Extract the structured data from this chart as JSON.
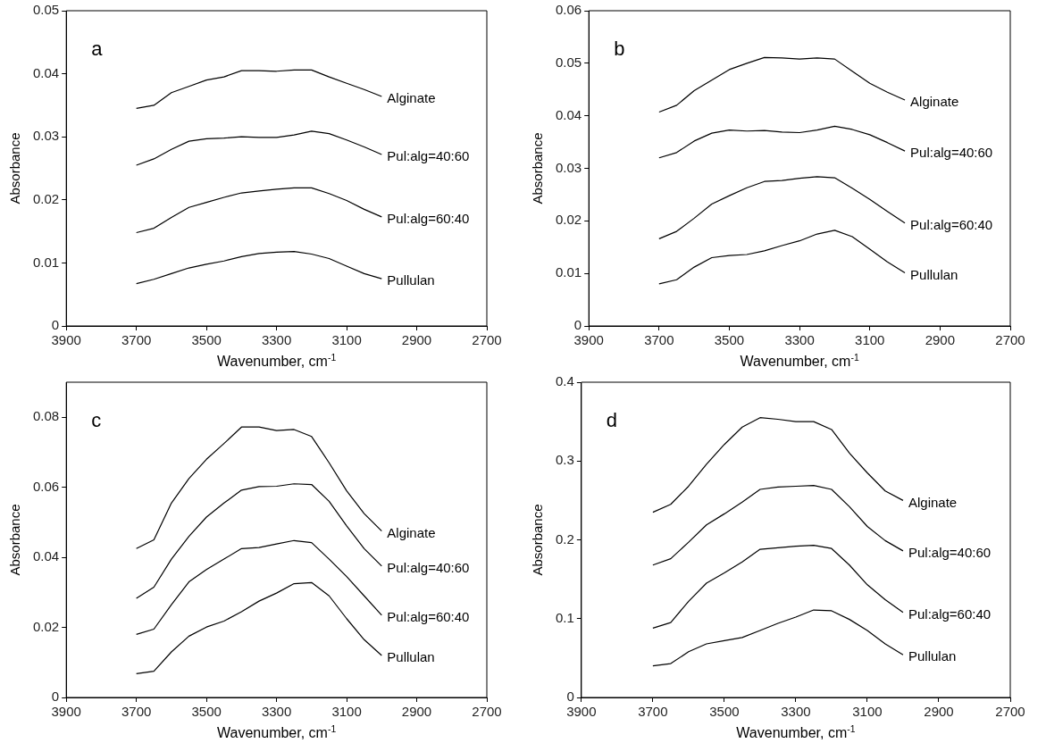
{
  "chart_data": [
    {
      "type": "line",
      "title": "a",
      "xlabel": "Wavenumber, cm$^{-1}$",
      "ylabel": "Absorbance",
      "x": [
        3700,
        3650,
        3600,
        3550,
        3500,
        3450,
        3400,
        3350,
        3300,
        3250,
        3200,
        3150,
        3100,
        3050,
        3000
      ],
      "xlim": [
        3900,
        2700
      ],
      "xticks": [
        3900,
        3700,
        3500,
        3300,
        3100,
        2900,
        2700
      ],
      "ylim": [
        0,
        0.05
      ],
      "yticks": [
        0,
        0.01,
        0.02,
        0.03,
        0.04,
        0.05
      ],
      "grid": false,
      "legend": false,
      "marker": "none",
      "line_style": "solid",
      "series": [
        {
          "name": "Alginate",
          "color": "#000000",
          "values": [
            0.0345,
            0.035,
            0.037,
            0.038,
            0.039,
            0.0395,
            0.0405,
            0.0405,
            0.0404,
            0.0406,
            0.0406,
            0.0395,
            0.0385,
            0.0375,
            0.0364
          ]
        },
        {
          "name": "Pul:alg=40:60",
          "color": "#000000",
          "values": [
            0.0255,
            0.0265,
            0.028,
            0.0293,
            0.0297,
            0.0298,
            0.03,
            0.0299,
            0.0299,
            0.0303,
            0.0309,
            0.0305,
            0.0295,
            0.0284,
            0.0272
          ]
        },
        {
          "name": "Pul:alg=60:40",
          "color": "#000000",
          "values": [
            0.0148,
            0.0155,
            0.0172,
            0.0188,
            0.0196,
            0.0204,
            0.0211,
            0.0214,
            0.0217,
            0.0219,
            0.0219,
            0.021,
            0.0199,
            0.0185,
            0.0173
          ]
        },
        {
          "name": "Pullulan",
          "color": "#000000",
          "values": [
            0.0067,
            0.0074,
            0.0083,
            0.0092,
            0.0098,
            0.0103,
            0.011,
            0.0115,
            0.0117,
            0.0118,
            0.0114,
            0.0107,
            0.0095,
            0.0083,
            0.0075
          ]
        }
      ]
    },
    {
      "type": "line",
      "title": "b",
      "xlabel": "Wavenumber, cm$^{-1}$",
      "ylabel": "Absorbance",
      "x": [
        3700,
        3650,
        3600,
        3550,
        3500,
        3450,
        3400,
        3350,
        3300,
        3250,
        3200,
        3150,
        3100,
        3050,
        3000
      ],
      "xlim": [
        3900,
        2700
      ],
      "xticks": [
        3900,
        3700,
        3500,
        3300,
        3100,
        2900,
        2700
      ],
      "ylim": [
        0,
        0.06
      ],
      "yticks": [
        0,
        0.01,
        0.02,
        0.03,
        0.04,
        0.05,
        0.06
      ],
      "grid": false,
      "legend": false,
      "marker": "none",
      "line_style": "solid",
      "series": [
        {
          "name": "Alginate",
          "color": "#000000",
          "values": [
            0.0407,
            0.042,
            0.0448,
            0.0468,
            0.0488,
            0.05,
            0.0511,
            0.051,
            0.0508,
            0.051,
            0.0508,
            0.0485,
            0.0462,
            0.0445,
            0.043
          ]
        },
        {
          "name": "Pul:alg=40:60",
          "color": "#000000",
          "values": [
            0.032,
            0.033,
            0.0352,
            0.0367,
            0.0373,
            0.0371,
            0.0372,
            0.0369,
            0.0368,
            0.0373,
            0.038,
            0.0374,
            0.0364,
            0.0349,
            0.0333
          ]
        },
        {
          "name": "Pul:alg=60:40",
          "color": "#000000",
          "values": [
            0.0166,
            0.018,
            0.0205,
            0.0232,
            0.0248,
            0.0263,
            0.0275,
            0.0277,
            0.0281,
            0.0284,
            0.0282,
            0.0262,
            0.0241,
            0.0218,
            0.0196
          ]
        },
        {
          "name": "Pullulan",
          "color": "#000000",
          "values": [
            0.008,
            0.0088,
            0.0112,
            0.013,
            0.0134,
            0.0136,
            0.0143,
            0.0153,
            0.0162,
            0.0175,
            0.0182,
            0.017,
            0.0146,
            0.0122,
            0.0101
          ]
        }
      ]
    },
    {
      "type": "line",
      "title": "c",
      "xlabel": "Wavenumber, cm$^{-1}$",
      "ylabel": "Absorbance",
      "x": [
        3700,
        3650,
        3600,
        3550,
        3500,
        3450,
        3400,
        3350,
        3300,
        3250,
        3200,
        3150,
        3100,
        3050,
        3000
      ],
      "xlim": [
        3900,
        2700
      ],
      "xticks": [
        3900,
        3700,
        3500,
        3300,
        3100,
        2900,
        2700
      ],
      "ylim": [
        0,
        0.09
      ],
      "yticks": [
        0,
        0.02,
        0.04,
        0.06,
        0.08
      ],
      "grid": false,
      "legend": false,
      "marker": "none",
      "line_style": "solid",
      "series": [
        {
          "name": "Alginate",
          "color": "#000000",
          "values": [
            0.0425,
            0.045,
            0.0555,
            0.0625,
            0.068,
            0.0725,
            0.0772,
            0.0772,
            0.0762,
            0.0765,
            0.0745,
            0.067,
            0.059,
            0.0525,
            0.0475
          ]
        },
        {
          "name": "Pul:alg=40:60",
          "color": "#000000",
          "values": [
            0.0283,
            0.0315,
            0.0395,
            0.046,
            0.0515,
            0.0555,
            0.0592,
            0.0602,
            0.0603,
            0.061,
            0.0608,
            0.056,
            0.049,
            0.0425,
            0.0375
          ]
        },
        {
          "name": "Pul:alg=60:40",
          "color": "#000000",
          "values": [
            0.018,
            0.0195,
            0.0265,
            0.033,
            0.0365,
            0.0395,
            0.0425,
            0.0428,
            0.0438,
            0.0448,
            0.0442,
            0.0395,
            0.0345,
            0.029,
            0.0235
          ]
        },
        {
          "name": "Pullulan",
          "color": "#000000",
          "values": [
            0.0068,
            0.0075,
            0.013,
            0.0175,
            0.0201,
            0.0218,
            0.0245,
            0.0275,
            0.0298,
            0.0325,
            0.0328,
            0.029,
            0.0225,
            0.0165,
            0.012
          ]
        }
      ]
    },
    {
      "type": "line",
      "title": "d",
      "xlabel": "Wavenumber, cm$^{-1}$",
      "ylabel": "Absorbance",
      "x": [
        3700,
        3650,
        3600,
        3550,
        3500,
        3450,
        3400,
        3350,
        3300,
        3250,
        3200,
        3150,
        3100,
        3050,
        3000
      ],
      "xlim": [
        3900,
        2700
      ],
      "xticks": [
        3900,
        3700,
        3500,
        3300,
        3100,
        2900,
        2700
      ],
      "ylim": [
        0,
        0.4
      ],
      "yticks": [
        0,
        0.1,
        0.2,
        0.3,
        0.4
      ],
      "grid": false,
      "legend": false,
      "marker": "none",
      "line_style": "solid",
      "series": [
        {
          "name": "Alginate",
          "color": "#000000",
          "values": [
            0.235,
            0.245,
            0.268,
            0.296,
            0.321,
            0.343,
            0.355,
            0.353,
            0.35,
            0.35,
            0.34,
            0.31,
            0.285,
            0.262,
            0.25
          ]
        },
        {
          "name": "Pul:alg=40:60",
          "color": "#000000",
          "values": [
            0.168,
            0.176,
            0.197,
            0.219,
            0.233,
            0.248,
            0.264,
            0.267,
            0.268,
            0.269,
            0.264,
            0.242,
            0.217,
            0.199,
            0.186
          ]
        },
        {
          "name": "Pul:alg=60:40",
          "color": "#000000",
          "values": [
            0.088,
            0.095,
            0.122,
            0.145,
            0.158,
            0.172,
            0.188,
            0.19,
            0.192,
            0.193,
            0.189,
            0.168,
            0.143,
            0.124,
            0.108
          ]
        },
        {
          "name": "Pullulan",
          "color": "#000000",
          "values": [
            0.04,
            0.043,
            0.058,
            0.068,
            0.072,
            0.076,
            0.085,
            0.094,
            0.102,
            0.111,
            0.11,
            0.099,
            0.085,
            0.068,
            0.054
          ]
        }
      ]
    }
  ]
}
